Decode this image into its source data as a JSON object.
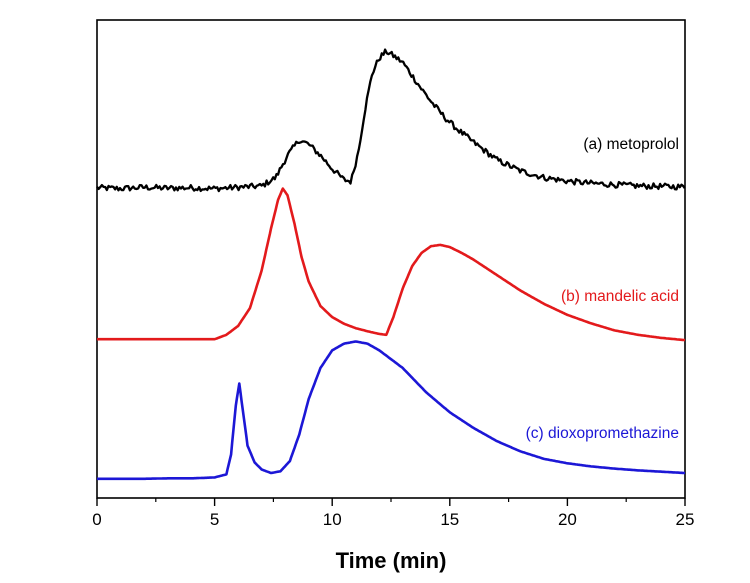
{
  "chart_data": {
    "type": "line",
    "title": "",
    "xlabel": "Time (min)",
    "ylabel": "",
    "xlim": [
      0,
      25
    ],
    "x_ticks": [
      0,
      5,
      10,
      15,
      20,
      25
    ],
    "x_minor_ticks": [
      2.5,
      7.5,
      12.5,
      17.5,
      22.5
    ],
    "ylim": [
      0,
      100
    ],
    "grid": false,
    "legend": "none (inline series labels on right)",
    "note": "y is relative detector response on an unlabelled axis; each trace is vertically offset",
    "series": [
      {
        "name": "(a) metoprolol",
        "color": "#000000",
        "noisy": true,
        "x": [
          0,
          1,
          2,
          3,
          4,
          5,
          6,
          7,
          7.6,
          8.1,
          8.6,
          9.0,
          9.5,
          10.0,
          10.5,
          10.8,
          11.1,
          11.4,
          11.7,
          12.0,
          12.3,
          12.6,
          13.0,
          13.4,
          13.8,
          14.3,
          14.8,
          15.3,
          16,
          17,
          18,
          19,
          20,
          21,
          22,
          23,
          24,
          25
        ],
        "y": [
          66.2,
          66.0,
          66.3,
          66.1,
          66.2,
          66.0,
          66.3,
          66.6,
          68.5,
          73.5,
          77.0,
          76.0,
          73.5,
          70.5,
          68.0,
          67.6,
          74.0,
          84.0,
          92.0,
          95.5,
          97.0,
          96.0,
          94.5,
          91.5,
          88.5,
          85.0,
          82.0,
          79.5,
          76.5,
          72.5,
          70.0,
          68.5,
          67.7,
          67.2,
          66.9,
          66.6,
          66.5,
          66.4
        ]
      },
      {
        "name": "(b) mandelic acid",
        "color": "#e31a1c",
        "noisy": false,
        "x": [
          0,
          1,
          2,
          3,
          4,
          5,
          5.5,
          6,
          6.5,
          7,
          7.4,
          7.7,
          7.9,
          8.1,
          8.4,
          8.7,
          9,
          9.5,
          10,
          10.5,
          11,
          11.5,
          12,
          12.3,
          12.6,
          13,
          13.4,
          13.8,
          14.2,
          14.6,
          15,
          15.5,
          16,
          17,
          18,
          19,
          20,
          21,
          22,
          23,
          24,
          25
        ],
        "y": [
          32.0,
          32.0,
          32.0,
          32.0,
          32.0,
          32.0,
          33.0,
          35.0,
          39.0,
          47.5,
          57.0,
          63.5,
          66.0,
          64.5,
          58.0,
          50.5,
          45.0,
          39.5,
          37.0,
          35.5,
          34.5,
          33.8,
          33.2,
          33.0,
          37.0,
          43.5,
          48.5,
          51.5,
          53.0,
          53.3,
          52.8,
          51.5,
          50.0,
          46.5,
          43.0,
          40.0,
          37.5,
          35.6,
          34.0,
          33.0,
          32.3,
          31.8
        ]
      },
      {
        "name": "(c) dioxopromethazine",
        "color": "#1c17d6",
        "noisy": false,
        "x": [
          0,
          1,
          2,
          3,
          4,
          5,
          5.5,
          5.7,
          5.9,
          6.05,
          6.2,
          6.4,
          6.7,
          7,
          7.4,
          7.8,
          8.2,
          8.6,
          9.0,
          9.5,
          10.0,
          10.5,
          11.0,
          11.5,
          12,
          13,
          14,
          15,
          16,
          17,
          18,
          19,
          20,
          21,
          22,
          23,
          24,
          25
        ],
        "y": [
          0.5,
          0.5,
          0.5,
          0.6,
          0.6,
          0.8,
          1.5,
          6.0,
          17.0,
          22.0,
          16.0,
          8.0,
          4.2,
          2.6,
          1.8,
          2.2,
          4.5,
          10.5,
          18.5,
          25.5,
          29.5,
          31.0,
          31.5,
          31.0,
          29.5,
          25.5,
          20.0,
          15.5,
          12.0,
          9.0,
          6.7,
          5.0,
          4.0,
          3.3,
          2.8,
          2.4,
          2.1,
          1.8
        ]
      }
    ]
  }
}
